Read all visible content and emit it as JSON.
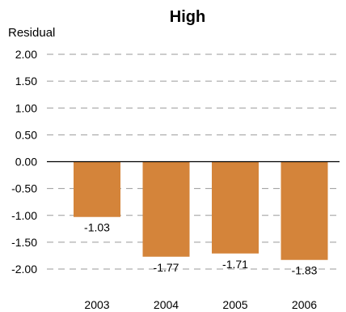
{
  "chart_data": {
    "type": "bar",
    "title": "High",
    "ylabel": "Residual",
    "xlabel": "",
    "categories": [
      "2003",
      "2004",
      "2005",
      "2006"
    ],
    "values": [
      -1.03,
      -1.77,
      -1.71,
      -1.83
    ],
    "data_labels": [
      "-1.03",
      "-1.77",
      "-1.71",
      "-1.83"
    ],
    "yticks": [
      "2.00",
      "1.50",
      "1.00",
      "0.50",
      "0.00",
      "-0.50",
      "-1.00",
      "-1.50",
      "-2.00"
    ],
    "ylim": [
      -2,
      2
    ],
    "grid": true,
    "legend": "none",
    "bar_color": "#d4843a",
    "grid_color": "#9a9a9a",
    "axis_color": "#000000"
  }
}
